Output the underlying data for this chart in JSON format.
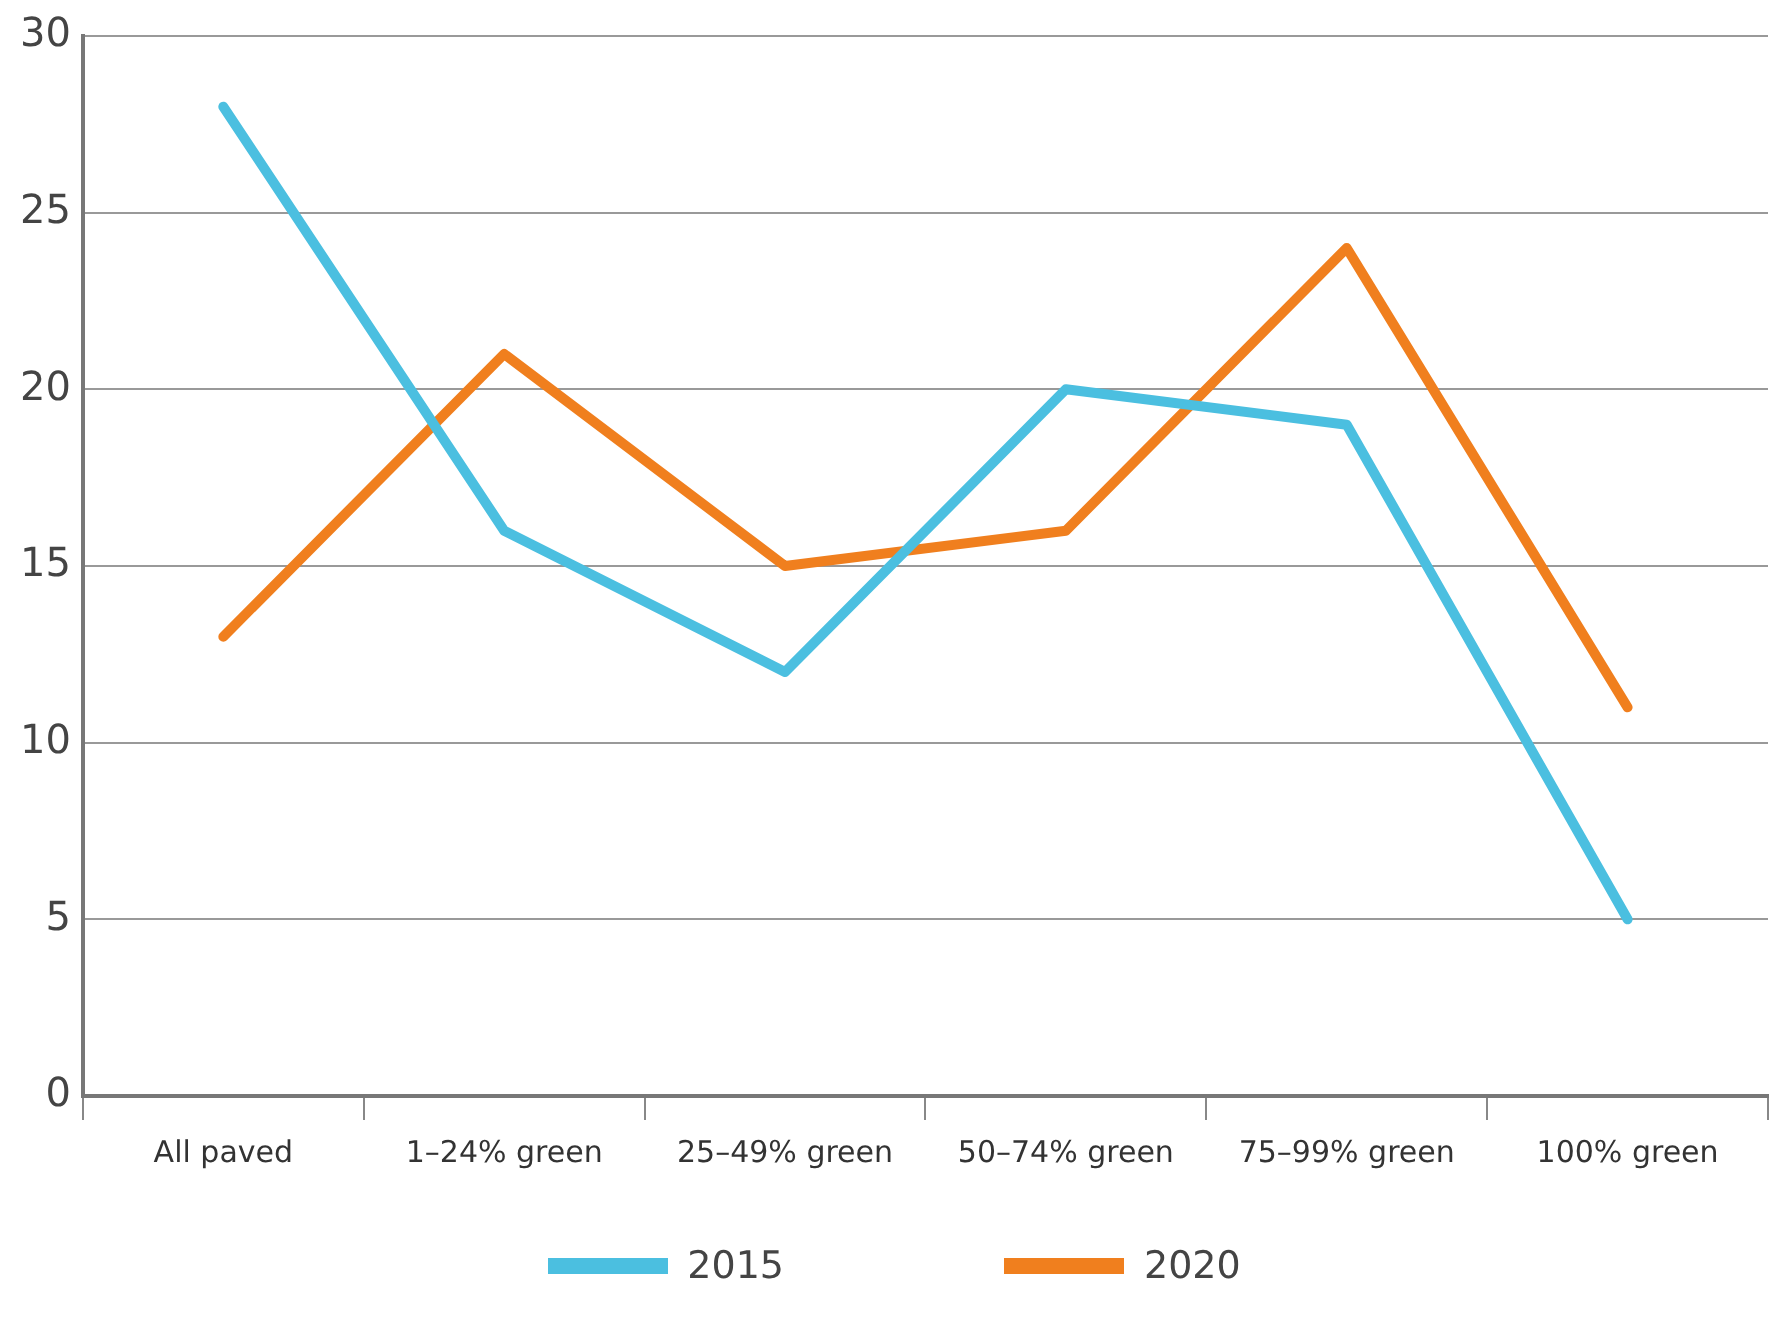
{
  "chart_data": {
    "type": "line",
    "categories": [
      "All paved",
      "1–24% green",
      "25–49% green",
      "50–74% green",
      "75–99% green",
      "100% green"
    ],
    "series": [
      {
        "name": "2015",
        "color": "#4bbfe0",
        "values": [
          28,
          16,
          12,
          20,
          19,
          5
        ]
      },
      {
        "name": "2020",
        "color": "#f07f1e",
        "values": [
          13,
          21,
          15,
          16,
          24,
          11
        ]
      }
    ],
    "ylim": [
      0,
      30
    ],
    "yticks": [
      0,
      5,
      10,
      15,
      20,
      25,
      30
    ],
    "grid": "y",
    "legend": "bottom",
    "marker": "none",
    "line_style": "solid"
  }
}
